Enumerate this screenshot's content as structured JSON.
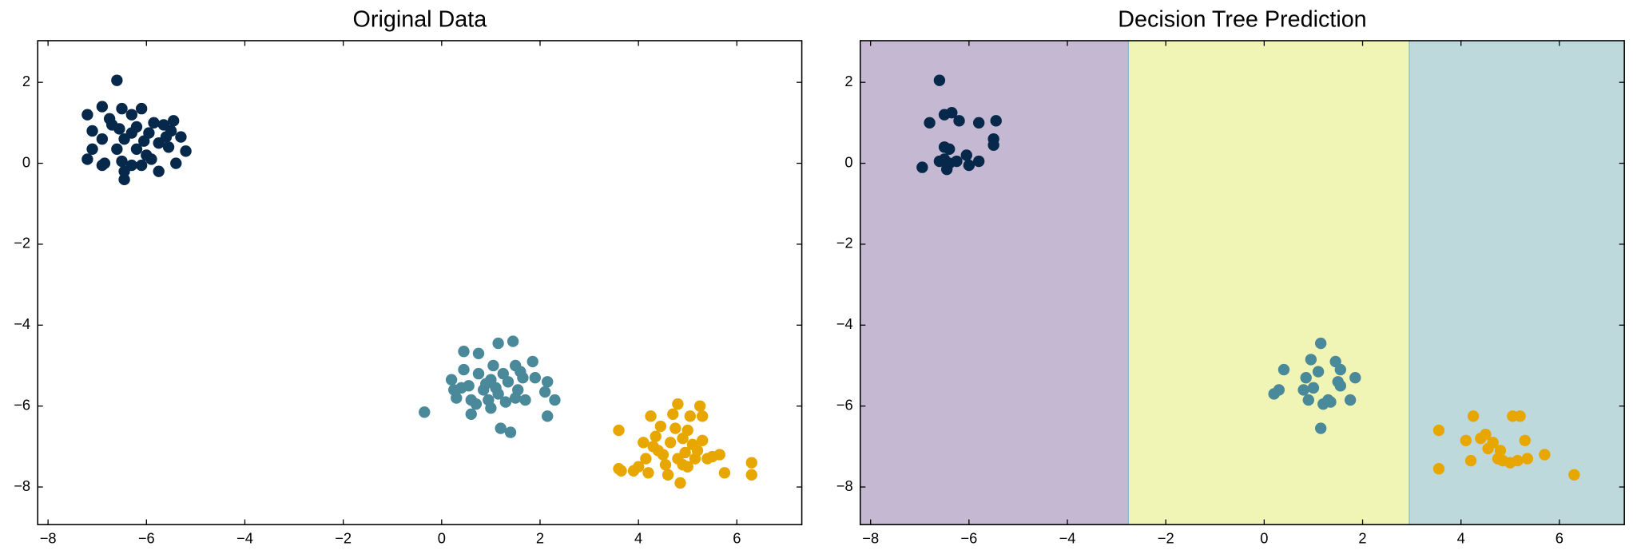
{
  "chart_data": [
    {
      "type": "scatter",
      "title": "Original Data",
      "xlim": [
        -8.21,
        7.32
      ],
      "ylim": [
        -8.93,
        3.03
      ],
      "xticks": [
        {
          "value": -8,
          "label": "−8"
        },
        {
          "value": -6,
          "label": "−6"
        },
        {
          "value": -4,
          "label": "−4"
        },
        {
          "value": -2,
          "label": "−2"
        },
        0,
        2,
        4,
        6
      ],
      "yticks": [
        {
          "value": -8,
          "label": "−8"
        },
        {
          "value": -6,
          "label": "−6"
        },
        {
          "value": -4,
          "label": "−4"
        },
        {
          "value": -2,
          "label": "−2"
        },
        0,
        2
      ],
      "series": [
        {
          "color": "#06284b",
          "x": [
            -6.6,
            -7.2,
            -6.9,
            -6.5,
            -6.1,
            -5.85,
            -5.45,
            -6.3,
            -6.7,
            -7.1,
            -6.2,
            -5.95,
            -5.6,
            -5.3,
            -6.9,
            -6.45,
            -6.05,
            -5.75,
            -7.1,
            -6.6,
            -6.2,
            -5.55,
            -5.2,
            -7.2,
            -6.85,
            -6.5,
            -6.3,
            -5.9,
            -5.4,
            -6.45,
            -5.75,
            -6.45,
            -6.9,
            -6.0,
            -6.3,
            -5.65,
            -6.75,
            -6.1,
            -5.5,
            -6.55
          ],
          "y": [
            2.05,
            1.2,
            1.4,
            1.35,
            1.35,
            1.0,
            1.05,
            1.2,
            0.95,
            0.8,
            0.9,
            0.75,
            0.65,
            0.65,
            0.6,
            0.6,
            0.55,
            0.5,
            0.35,
            0.35,
            0.35,
            0.4,
            0.3,
            0.1,
            0.0,
            0.05,
            -0.05,
            0.1,
            0.0,
            -0.2,
            -0.2,
            -0.4,
            -0.05,
            0.2,
            0.75,
            0.95,
            1.1,
            -0.05,
            0.8,
            0.85
          ]
        },
        {
          "color": "#4a8999",
          "x": [
            -0.35,
            0.2,
            0.25,
            0.3,
            0.45,
            0.45,
            0.55,
            0.6,
            0.6,
            0.75,
            0.75,
            0.85,
            0.95,
            1.0,
            1.0,
            1.05,
            1.15,
            1.15,
            1.2,
            1.3,
            1.35,
            1.4,
            1.45,
            1.5,
            1.55,
            1.65,
            1.7,
            1.85,
            1.9,
            2.1,
            2.15,
            2.15,
            2.3,
            1.25,
            0.9,
            0.4,
            1.5,
            1.6,
            0.7,
            1.1
          ],
          "y": [
            -6.15,
            -5.35,
            -5.6,
            -5.8,
            -5.1,
            -4.65,
            -5.5,
            -5.85,
            -6.2,
            -5.2,
            -4.7,
            -5.6,
            -5.85,
            -6.05,
            -5.35,
            -5.0,
            -4.45,
            -5.7,
            -6.55,
            -5.9,
            -5.4,
            -6.65,
            -4.4,
            -5.0,
            -5.6,
            -5.3,
            -5.85,
            -4.9,
            -5.3,
            -5.65,
            -5.4,
            -6.25,
            -5.85,
            -5.2,
            -5.45,
            -5.55,
            -5.8,
            -5.15,
            -5.95,
            -5.55
          ]
        },
        {
          "color": "#e8a700",
          "x": [
            3.6,
            3.6,
            3.65,
            3.9,
            4.0,
            4.1,
            4.15,
            4.2,
            4.25,
            4.35,
            4.4,
            4.45,
            4.55,
            4.6,
            4.65,
            4.7,
            4.75,
            4.8,
            4.8,
            4.85,
            4.9,
            4.95,
            5.0,
            5.05,
            5.1,
            5.15,
            5.25,
            5.3,
            5.3,
            5.4,
            5.5,
            5.65,
            5.75,
            6.3,
            6.3,
            4.5,
            4.9,
            5.2,
            4.3,
            5.0
          ],
          "y": [
            -6.6,
            -7.55,
            -7.6,
            -7.6,
            -7.5,
            -6.9,
            -7.3,
            -7.65,
            -6.25,
            -6.75,
            -7.1,
            -6.5,
            -7.45,
            -7.7,
            -6.9,
            -6.2,
            -6.55,
            -5.95,
            -7.3,
            -7.9,
            -6.8,
            -7.15,
            -7.5,
            -6.25,
            -6.95,
            -7.3,
            -6.0,
            -6.25,
            -6.85,
            -7.3,
            -7.25,
            -7.2,
            -7.65,
            -7.4,
            -7.7,
            -7.2,
            -7.45,
            -7.1,
            -7.0,
            -6.6
          ]
        }
      ]
    },
    {
      "type": "scatter",
      "title": "Decision Tree Prediction",
      "xlim": [
        -8.21,
        7.32
      ],
      "ylim": [
        -8.93,
        3.03
      ],
      "xticks": [
        {
          "value": -8,
          "label": "−8"
        },
        {
          "value": -6,
          "label": "−6"
        },
        {
          "value": -4,
          "label": "−4"
        },
        {
          "value": -2,
          "label": "−2"
        },
        0,
        2,
        4,
        6
      ],
      "yticks": [
        {
          "value": -8,
          "label": "−8"
        },
        {
          "value": -6,
          "label": "−6"
        },
        {
          "value": -4,
          "label": "−4"
        },
        {
          "value": -2,
          "label": "−2"
        },
        0,
        2
      ],
      "decision_boundaries": [
        -2.76,
        2.95
      ],
      "region_colors": [
        "#c5b8d2",
        "#f0f5b6",
        "#bed9dc"
      ],
      "series": [
        {
          "color": "#06284b",
          "x": [
            -6.6,
            -6.5,
            -6.35,
            -6.2,
            -6.8,
            -5.8,
            -5.45,
            -5.5,
            -5.5,
            -6.5,
            -6.4,
            -6.5,
            -6.25,
            -6.05,
            -6.0,
            -5.8,
            -6.6,
            -6.45,
            -6.95,
            -6.4
          ],
          "y": [
            2.05,
            1.2,
            1.25,
            1.05,
            1.0,
            1.0,
            1.05,
            0.6,
            0.45,
            0.4,
            0.35,
            0.1,
            0.05,
            0.2,
            -0.05,
            0.05,
            0.05,
            -0.15,
            -0.1,
            0.0
          ]
        },
        {
          "color": "#4a8999",
          "x": [
            0.2,
            0.3,
            0.4,
            0.8,
            0.85,
            0.9,
            0.95,
            1.0,
            1.1,
            1.15,
            1.15,
            1.2,
            1.3,
            1.35,
            1.45,
            1.5,
            1.55,
            1.55,
            1.75,
            1.85
          ],
          "y": [
            -5.7,
            -5.6,
            -5.1,
            -5.6,
            -5.3,
            -5.85,
            -4.85,
            -5.55,
            -5.15,
            -4.45,
            -6.55,
            -5.95,
            -5.85,
            -5.9,
            -4.9,
            -5.4,
            -5.5,
            -5.1,
            -5.85,
            -5.3
          ]
        },
        {
          "color": "#e8a700",
          "x": [
            3.55,
            3.55,
            4.1,
            4.2,
            4.25,
            4.4,
            4.5,
            4.55,
            4.65,
            4.75,
            4.8,
            4.85,
            5.0,
            5.05,
            5.15,
            5.2,
            5.3,
            5.35,
            5.7,
            6.3
          ],
          "y": [
            -6.6,
            -7.55,
            -6.85,
            -7.35,
            -6.25,
            -6.8,
            -6.7,
            -7.05,
            -6.9,
            -7.3,
            -7.1,
            -7.35,
            -7.4,
            -6.25,
            -7.35,
            -6.25,
            -6.85,
            -7.3,
            -7.2,
            -7.7
          ]
        }
      ]
    }
  ]
}
